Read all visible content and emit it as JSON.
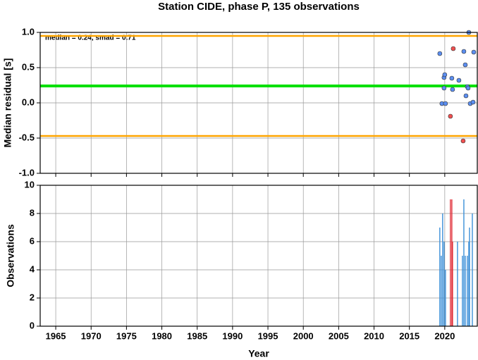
{
  "chart_data": [
    {
      "type": "scatter",
      "title": "Station CIDE, phase P, 135 observations",
      "ylabel": "Median residual [s]",
      "annotation": "median = 0.24, smad = 0.71",
      "median": 0.24,
      "median_color": "#00e000",
      "bounds": [
        0.95,
        -0.47
      ],
      "bounds_color": "#ffa500",
      "xlim": [
        1962.8,
        2024.6
      ],
      "ylim": [
        -1,
        1
      ],
      "yticks": [
        {
          "value": -1,
          "label": "-1.0"
        },
        -0.5,
        {
          "value": 0,
          "label": "0.0"
        },
        0.5,
        {
          "value": 1,
          "label": "1.0"
        }
      ],
      "grid": true,
      "series": [
        {
          "color": "#5b8ef0",
          "x": [
            2019.3,
            2019.9,
            2020.0,
            2019.9,
            2019.6,
            2020.1,
            2021.0,
            2021.1,
            2022.0,
            2022.7,
            2022.9,
            2023.0,
            2023.2,
            2023.3,
            2023.4,
            2023.6,
            2024.0,
            2024.1
          ],
          "values": [
            0.7,
            0.36,
            0.4,
            0.21,
            -0.01,
            -0.01,
            0.35,
            0.19,
            0.32,
            0.73,
            0.54,
            0.1,
            0.23,
            0.21,
            1.0,
            -0.01,
            0.01,
            0.72
          ]
        },
        {
          "color": "#f05050",
          "x": [
            2021.2,
            2020.8,
            2022.6
          ],
          "values": [
            0.77,
            -0.19,
            -0.54
          ]
        }
      ]
    },
    {
      "type": "bar",
      "ylabel": "Observations",
      "xlabel": "Year",
      "xlim": [
        1962.8,
        2024.6
      ],
      "ylim": [
        0,
        10
      ],
      "yticks": [
        0,
        2,
        4,
        6,
        8,
        10
      ],
      "xticks": [
        1965,
        1970,
        1975,
        1980,
        1985,
        1990,
        1995,
        2000,
        2005,
        2010,
        2015,
        2020
      ],
      "grid": true,
      "series": [
        {
          "color": "#3a8fd8",
          "x": [
            2019.3,
            2019.5,
            2019.7,
            2019.9,
            2020.1,
            2021.8,
            2022.5,
            2022.7,
            2022.9,
            2023.2,
            2023.4,
            2023.5,
            2023.9
          ],
          "values": [
            7,
            5,
            8,
            6,
            4,
            6,
            5,
            9,
            5,
            5,
            6,
            7,
            8
          ]
        },
        {
          "color": "#e0303a",
          "x": [
            2020.8,
            2021.0,
            2021.1
          ],
          "values": [
            9,
            9,
            6
          ]
        }
      ]
    }
  ]
}
